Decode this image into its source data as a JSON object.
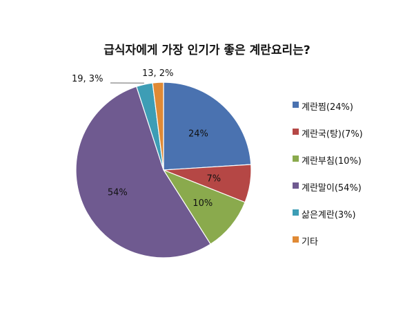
{
  "chart_data": {
    "type": "pie",
    "title": "급식자에게 가장 인기가 좋은 계란요리는?",
    "slices": [
      {
        "name": "계란찜(24%)",
        "value": 24,
        "label": "24%",
        "color": "#4a72b0"
      },
      {
        "name": "계란국(탕)(7%)",
        "value": 7,
        "label": "7%",
        "color": "#b54745"
      },
      {
        "name": "계란부침(10%)",
        "value": 10,
        "label": "10%",
        "color": "#8aaa4d"
      },
      {
        "name": "계란말이(54%)",
        "value": 54,
        "label": "54%",
        "color": "#6f5a90"
      },
      {
        "name": "삶은계란(3%)",
        "value": 3,
        "label": "19, 3%",
        "color": "#3d9db5"
      },
      {
        "name": "기타",
        "value": 2,
        "label": "13, 2%",
        "color": "#e08a35"
      }
    ],
    "legend_position": "right"
  }
}
